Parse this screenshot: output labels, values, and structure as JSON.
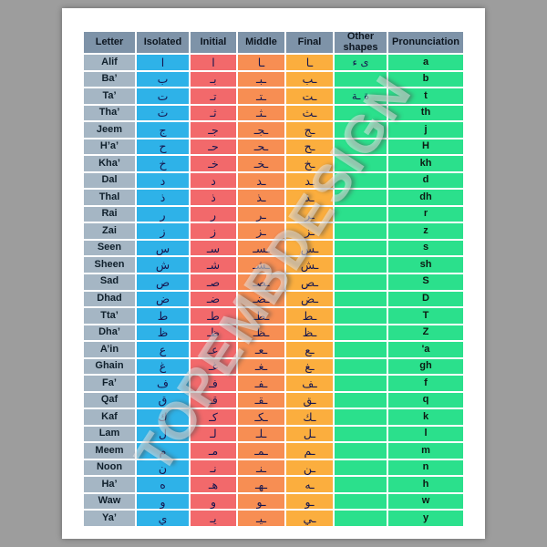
{
  "watermark": "TOPEMBDESIGN",
  "table": {
    "headers": [
      {
        "key": "letter",
        "label": "Letter"
      },
      {
        "key": "isolated",
        "label": "Isolated"
      },
      {
        "key": "initial",
        "label": "Initial"
      },
      {
        "key": "middle",
        "label": "Middle"
      },
      {
        "key": "final",
        "label": "Final"
      },
      {
        "key": "other",
        "label": "Other shapes"
      },
      {
        "key": "pron",
        "label": "Pronunciation"
      }
    ],
    "rows": [
      {
        "letter": "Alif",
        "isolated": "ا",
        "initial": "ا",
        "middle": "ـا",
        "final": "ـا",
        "other": "ى ء",
        "pron": "a"
      },
      {
        "letter": "Ba’",
        "isolated": "ب",
        "initial": "بـ",
        "middle": "ـبـ",
        "final": "ـب",
        "other": "",
        "pron": "b"
      },
      {
        "letter": "Ta’",
        "isolated": "ت",
        "initial": "تـ",
        "middle": "ـتـ",
        "final": "ـت",
        "other": "ة ـة",
        "pron": "t"
      },
      {
        "letter": "Tha’",
        "isolated": "ث",
        "initial": "ثـ",
        "middle": "ـثـ",
        "final": "ـث",
        "other": "",
        "pron": "th"
      },
      {
        "letter": "Jeem",
        "isolated": "ج",
        "initial": "جـ",
        "middle": "ـجـ",
        "final": "ـج",
        "other": "",
        "pron": "j"
      },
      {
        "letter": "H’a’",
        "isolated": "ح",
        "initial": "حـ",
        "middle": "ـحـ",
        "final": "ـح",
        "other": "",
        "pron": "H"
      },
      {
        "letter": "Kha’",
        "isolated": "خ",
        "initial": "خـ",
        "middle": "ـخـ",
        "final": "ـخ",
        "other": "",
        "pron": "kh"
      },
      {
        "letter": "Dal",
        "isolated": "د",
        "initial": "د",
        "middle": "ـد",
        "final": "ـد",
        "other": "",
        "pron": "d"
      },
      {
        "letter": "Thal",
        "isolated": "ذ",
        "initial": "ذ",
        "middle": "ـذ",
        "final": "ـذ",
        "other": "",
        "pron": "dh"
      },
      {
        "letter": "Rai",
        "isolated": "ر",
        "initial": "ر",
        "middle": "ـر",
        "final": "ـر",
        "other": "",
        "pron": "r"
      },
      {
        "letter": "Zai",
        "isolated": "ز",
        "initial": "ز",
        "middle": "ـز",
        "final": "ـز",
        "other": "",
        "pron": "z"
      },
      {
        "letter": "Seen",
        "isolated": "س",
        "initial": "سـ",
        "middle": "ـسـ",
        "final": "ـس",
        "other": "",
        "pron": "s"
      },
      {
        "letter": "Sheen",
        "isolated": "ش",
        "initial": "شـ",
        "middle": "ـشـ",
        "final": "ـش",
        "other": "",
        "pron": "sh"
      },
      {
        "letter": "Sad",
        "isolated": "ص",
        "initial": "صـ",
        "middle": "ـصـ",
        "final": "ـص",
        "other": "",
        "pron": "S"
      },
      {
        "letter": "Dhad",
        "isolated": "ض",
        "initial": "ضـ",
        "middle": "ـضـ",
        "final": "ـض",
        "other": "",
        "pron": "D"
      },
      {
        "letter": "Tta’",
        "isolated": "ط",
        "initial": "طـ",
        "middle": "ـطـ",
        "final": "ـط",
        "other": "",
        "pron": "T"
      },
      {
        "letter": "Dha’",
        "isolated": "ظ",
        "initial": "ظـ",
        "middle": "ـظـ",
        "final": "ـظ",
        "other": "",
        "pron": "Z"
      },
      {
        "letter": "A’in",
        "isolated": "ع",
        "initial": "عـ",
        "middle": "ـعـ",
        "final": "ـع",
        "other": "",
        "pron": "'a"
      },
      {
        "letter": "Ghain",
        "isolated": "غ",
        "initial": "غـ",
        "middle": "ـغـ",
        "final": "ـغ",
        "other": "",
        "pron": "gh"
      },
      {
        "letter": "Fa’",
        "isolated": "ف",
        "initial": "فـ",
        "middle": "ـفـ",
        "final": "ـف",
        "other": "",
        "pron": "f"
      },
      {
        "letter": "Qaf",
        "isolated": "ق",
        "initial": "قـ",
        "middle": "ـقـ",
        "final": "ـق",
        "other": "",
        "pron": "q"
      },
      {
        "letter": "Kaf",
        "isolated": "ك",
        "initial": "كـ",
        "middle": "ـكـ",
        "final": "ـك",
        "other": "",
        "pron": "k"
      },
      {
        "letter": "Lam",
        "isolated": "ل",
        "initial": "لـ",
        "middle": "ـلـ",
        "final": "ـل",
        "other": "",
        "pron": "l"
      },
      {
        "letter": "Meem",
        "isolated": "م",
        "initial": "مـ",
        "middle": "ـمـ",
        "final": "ـم",
        "other": "",
        "pron": "m"
      },
      {
        "letter": "Noon",
        "isolated": "ن",
        "initial": "نـ",
        "middle": "ـنـ",
        "final": "ـن",
        "other": "",
        "pron": "n"
      },
      {
        "letter": "Ha’",
        "isolated": "ه",
        "initial": "هـ",
        "middle": "ـهـ",
        "final": "ـه",
        "other": "",
        "pron": "h"
      },
      {
        "letter": "Waw",
        "isolated": "و",
        "initial": "و",
        "middle": "ـو",
        "final": "ـو",
        "other": "",
        "pron": "w"
      },
      {
        "letter": "Ya’",
        "isolated": "ي",
        "initial": "يـ",
        "middle": "ـيـ",
        "final": "ـي",
        "other": "",
        "pron": "y"
      }
    ]
  }
}
